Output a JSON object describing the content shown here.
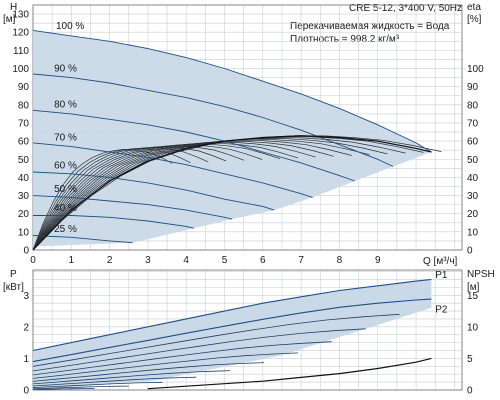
{
  "chart_data": [
    {
      "type": "line",
      "title": "CRE 5-12, 3*400 V, 50Hz",
      "annotations": [
        "Перекачиваемая жидкость = Вода",
        "Плотность = 998.2 кг/м³"
      ],
      "ylabel": "H",
      "yunit": "[м]",
      "y2label": "eta",
      "y2unit": "[%]",
      "xlabel": "Q [м³/ч]",
      "xlim": [
        0,
        11.2
      ],
      "ylim": [
        0,
        135
      ],
      "y2lim": [
        0,
        135
      ],
      "x_ticks": [
        0,
        1,
        2,
        3,
        4,
        5,
        6,
        7,
        8,
        9
      ],
      "y_ticks": [
        0,
        10,
        20,
        30,
        40,
        50,
        60,
        70,
        80,
        90,
        100,
        110,
        120,
        130
      ],
      "y2_ticks": [
        0,
        10,
        20,
        30,
        40,
        50,
        60,
        70,
        80,
        90,
        100
      ],
      "grid": true,
      "series": [
        {
          "name": "100 %",
          "x": [
            0,
            1,
            2,
            3,
            4,
            5,
            6,
            7,
            8,
            9,
            10,
            10.4
          ],
          "y": [
            121,
            118,
            115,
            111,
            106,
            100,
            93,
            86,
            78,
            69,
            59,
            54
          ]
        },
        {
          "name": "90 %",
          "x": [
            0,
            1,
            2,
            3,
            4,
            5,
            6,
            7,
            8,
            9,
            9.4
          ],
          "y": [
            97,
            95,
            92,
            88,
            84,
            79,
            73,
            66,
            58,
            50,
            46
          ]
        },
        {
          "name": "80 %",
          "x": [
            0,
            1,
            2,
            3,
            4,
            5,
            6,
            7,
            8,
            8.4
          ],
          "y": [
            77,
            75,
            72,
            69,
            65,
            60,
            54,
            48,
            41,
            38
          ]
        },
        {
          "name": "70 %",
          "x": [
            0,
            1,
            2,
            3,
            4,
            5,
            6,
            7,
            7.3
          ],
          "y": [
            59,
            57,
            54,
            51,
            47,
            42,
            37,
            31,
            29
          ]
        },
        {
          "name": "60 %",
          "x": [
            0,
            1,
            2,
            3,
            4,
            5,
            6,
            6.3
          ],
          "y": [
            43,
            42,
            40,
            37,
            33,
            28,
            24,
            22
          ]
        },
        {
          "name": "50 %",
          "x": [
            0,
            1,
            2,
            3,
            4,
            5,
            5.2
          ],
          "y": [
            30,
            29,
            27,
            25,
            22,
            18,
            17
          ]
        },
        {
          "name": "40 %",
          "x": [
            0,
            1,
            2,
            3,
            4,
            4.2
          ],
          "y": [
            19,
            19,
            18,
            16,
            13,
            12
          ]
        },
        {
          "name": "25 %",
          "x": [
            0,
            1,
            2,
            2.6
          ],
          "y": [
            8,
            7,
            5,
            4
          ]
        },
        {
          "name": "eta",
          "x": [
            0,
            1,
            2,
            3,
            4,
            5,
            6,
            7,
            8,
            9,
            10,
            10.4
          ],
          "y": [
            0,
            22,
            38,
            49,
            56,
            60,
            62,
            63,
            62,
            60,
            56,
            54
          ]
        }
      ]
    },
    {
      "type": "line",
      "ylabel": "P",
      "yunit": "[кВт]",
      "y2label": "NPSH",
      "y2unit": "[м]",
      "xlim": [
        0,
        11.2
      ],
      "ylim": [
        0,
        3.8
      ],
      "y2lim": [
        0,
        19
      ],
      "y_ticks": [
        0,
        1,
        2,
        3
      ],
      "y2_ticks": [
        0,
        5,
        10,
        15
      ],
      "grid": true,
      "series": [
        {
          "name": "P1",
          "x": [
            0,
            1,
            2,
            3,
            4,
            5,
            6,
            7,
            8,
            9,
            10,
            10.4
          ],
          "y": [
            1.25,
            1.5,
            1.75,
            2.0,
            2.25,
            2.5,
            2.75,
            2.95,
            3.15,
            3.3,
            3.45,
            3.5
          ]
        },
        {
          "name": "P2",
          "x": [
            0,
            1,
            2,
            3,
            4,
            5,
            6,
            7,
            8,
            9,
            10,
            10.4
          ],
          "y": [
            0.9,
            1.12,
            1.35,
            1.57,
            1.8,
            2.02,
            2.24,
            2.44,
            2.62,
            2.75,
            2.85,
            2.88
          ]
        },
        {
          "name": "NPSH",
          "x": [
            3,
            4,
            5,
            6,
            7,
            8,
            9,
            10,
            10.4
          ],
          "y": [
            0.2,
            0.6,
            1.0,
            1.4,
            2.0,
            2.6,
            3.4,
            4.4,
            5.0
          ]
        }
      ]
    }
  ]
}
